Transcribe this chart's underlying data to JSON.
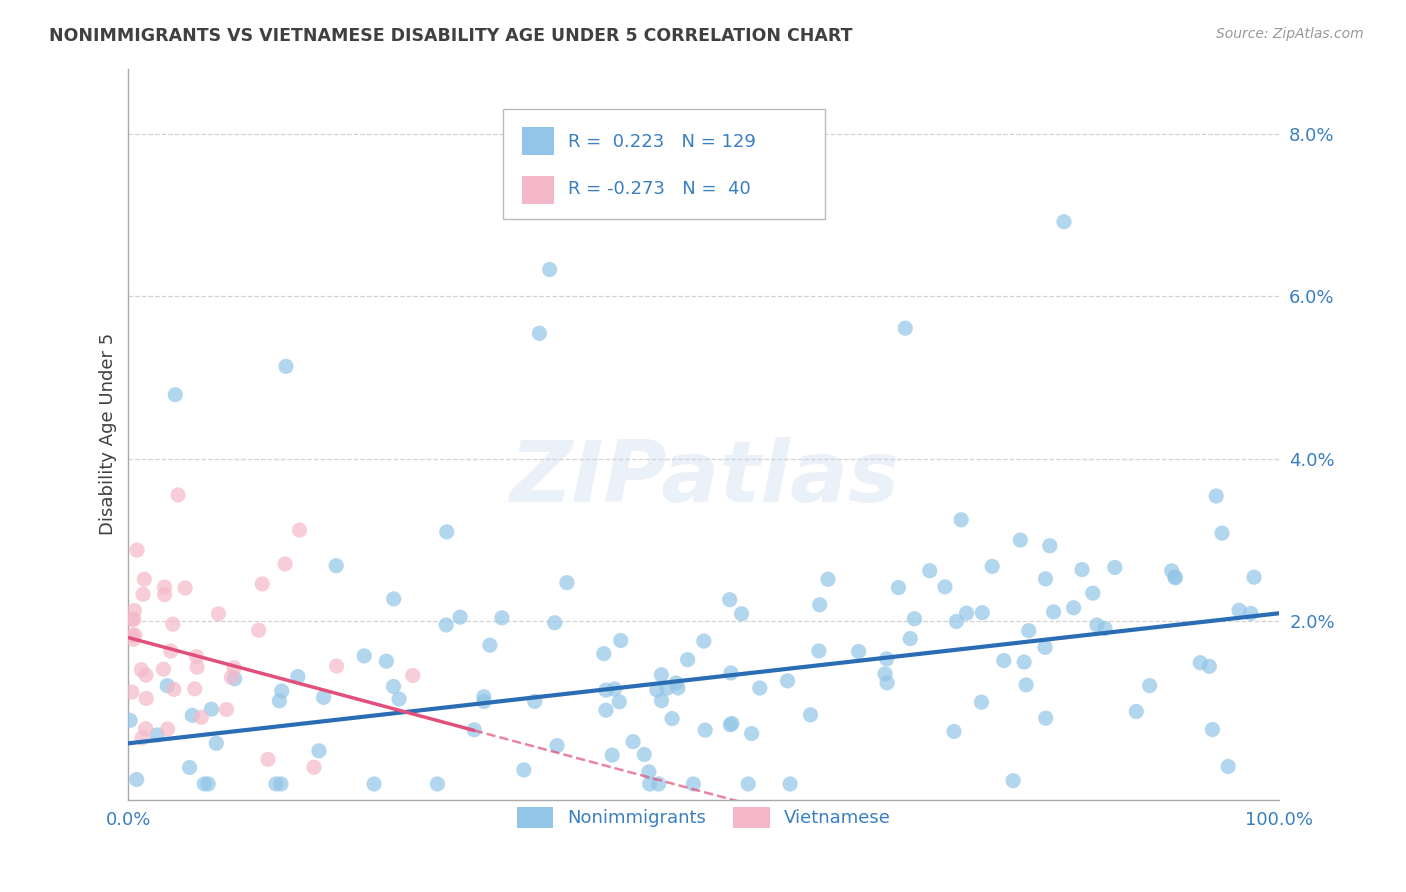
{
  "title": "NONIMMIGRANTS VS VIETNAMESE DISABILITY AGE UNDER 5 CORRELATION CHART",
  "source": "Source: ZipAtlas.com",
  "ylabel": "Disability Age Under 5",
  "xlim": [
    0,
    1.0
  ],
  "ylim": [
    -0.002,
    0.088
  ],
  "ytick_positions": [
    0.0,
    0.02,
    0.04,
    0.06,
    0.08
  ],
  "ytick_labels": [
    "",
    "2.0%",
    "4.0%",
    "6.0%",
    "8.0%"
  ],
  "xtick_positions": [
    0.0,
    1.0
  ],
  "xtick_labels": [
    "0.0%",
    "100.0%"
  ],
  "series1_color": "#92c5e8",
  "series2_color": "#f5b8c8",
  "trendline1_color": "#2a6db5",
  "trendline2_color": "#e0507a",
  "legend_label1": "Nonimmigrants",
  "legend_label2": "Vietnamese",
  "R1": 0.223,
  "N1": 129,
  "R2": -0.273,
  "N2": 40,
  "watermark": "ZIPatlas",
  "background_color": "#ffffff",
  "grid_color": "#c8c8c8",
  "title_color": "#404040",
  "axis_label_color": "#404040",
  "tick_color": "#3a7fc1",
  "source_color": "#999999",
  "trendline1_intercept": 0.005,
  "trendline1_slope": 0.016,
  "trendline2_intercept": 0.018,
  "trendline2_slope": -0.038
}
